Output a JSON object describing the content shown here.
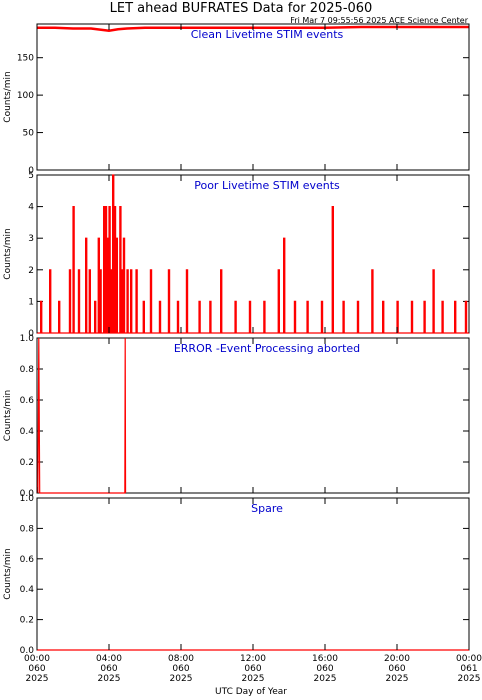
{
  "title": "LET ahead BUFRATES Data for 2025-060",
  "subtitle": "Fri Mar  7 09:55:56 2025 ACE Science Center",
  "x_axis_title": "UTC Day of Year",
  "x_tick_labels": [
    [
      "00:00",
      "060",
      "2025"
    ],
    [
      "04:00",
      "060",
      "2025"
    ],
    [
      "08:00",
      "060",
      "2025"
    ],
    [
      "12:00",
      "060",
      "2025"
    ],
    [
      "16:00",
      "060",
      "2025"
    ],
    [
      "20:00",
      "060",
      "2025"
    ],
    [
      "00:00",
      "061",
      "2025"
    ]
  ],
  "colors": {
    "data": "#ff0000",
    "panel_title": "#0000cc",
    "axes": "#000000"
  },
  "chart_data": [
    {
      "type": "line",
      "title": "Clean Livetime STIM events",
      "ylabel": "Counts/min",
      "xlim": [
        0,
        24
      ],
      "ylim": [
        0,
        195
      ],
      "yticks": [
        0,
        50,
        100,
        150
      ],
      "series": [
        {
          "x": [
            0,
            1,
            2,
            3,
            4,
            4.5,
            5,
            6,
            8,
            10,
            12,
            14,
            16,
            18,
            20,
            22,
            24
          ],
          "values": [
            190,
            190,
            189,
            189,
            186,
            188,
            189,
            190,
            190,
            190,
            190,
            190,
            190,
            191,
            191,
            191,
            191
          ]
        }
      ]
    },
    {
      "type": "line",
      "title": "Poor Livetime STIM events",
      "ylabel": "Counts/min",
      "xlim": [
        0,
        24
      ],
      "ylim": [
        0,
        5
      ],
      "yticks": [
        0,
        1,
        2,
        3,
        4,
        5
      ],
      "series": [
        {
          "x": [
            0.2,
            0.7,
            1.2,
            1.8,
            2.0,
            2.3,
            2.7,
            2.9,
            3.2,
            3.4,
            3.5,
            3.7,
            3.8,
            3.9,
            4.0,
            4.1,
            4.2,
            4.3,
            4.4,
            4.6,
            4.7,
            4.8,
            5.0,
            5.2,
            5.5,
            5.9,
            6.3,
            6.8,
            7.3,
            7.8,
            8.3,
            9.0,
            9.6,
            10.2,
            11.0,
            11.8,
            12.6,
            13.4,
            13.7,
            14.3,
            15.0,
            15.8,
            16.4,
            17.0,
            17.8,
            18.6,
            19.2,
            20.0,
            20.8,
            21.5,
            22.0,
            22.5,
            23.2,
            23.8
          ],
          "values": [
            1,
            2,
            1,
            2,
            4,
            2,
            3,
            2,
            1,
            3,
            2,
            4,
            4,
            3,
            4,
            2,
            5,
            4,
            3,
            4,
            2,
            3,
            2,
            2,
            2,
            1,
            2,
            1,
            2,
            1,
            2,
            1,
            1,
            2,
            1,
            1,
            1,
            2,
            3,
            1,
            1,
            1,
            4,
            1,
            1,
            2,
            1,
            1,
            1,
            1,
            2,
            1,
            1,
            1
          ]
        }
      ]
    },
    {
      "type": "line",
      "title": "ERROR -Event Processing aborted",
      "ylabel": "Counts/min",
      "xlim": [
        0,
        24
      ],
      "ylim": [
        0,
        1
      ],
      "yticks": [
        0.0,
        0.2,
        0.4,
        0.6,
        0.8,
        1.0
      ],
      "series": [
        {
          "x": [
            0.05,
            0.1,
            0.15,
            4.88,
            4.9,
            4.92
          ],
          "values": [
            0,
            1,
            0,
            0,
            1,
            0
          ]
        }
      ]
    },
    {
      "type": "line",
      "title": "Spare",
      "ylabel": "Counts/min",
      "xlim": [
        0,
        24
      ],
      "ylim": [
        0,
        1
      ],
      "yticks": [
        0.0,
        0.2,
        0.4,
        0.6,
        0.8,
        1.0
      ],
      "series": [
        {
          "x": [
            0,
            24
          ],
          "values": [
            0,
            0
          ]
        }
      ]
    }
  ]
}
